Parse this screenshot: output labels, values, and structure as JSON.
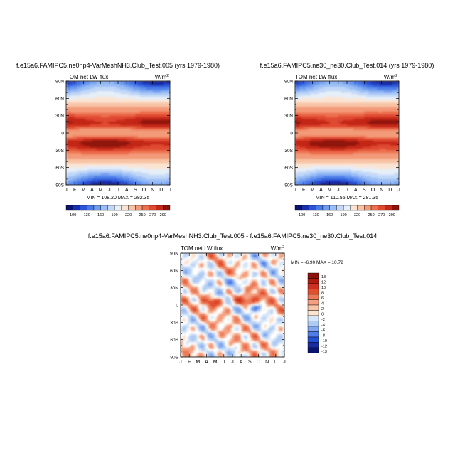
{
  "chart_data": [
    {
      "type": "heatmap",
      "title": "f.e15a6.FAMIPC5.ne0np4-VarMeshNH3.Club_Test.005 (yrs 1979-1980)",
      "left_label": "TOM net LW flux",
      "units_base": "W/m",
      "units_exp": "2",
      "stats": "MIN = 108.20 MAX = 282.35",
      "min": 108.2,
      "max": 282.35,
      "x_ticks": [
        "J",
        "F",
        "M",
        "A",
        "M",
        "J",
        "J",
        "A",
        "S",
        "O",
        "N",
        "D",
        "J"
      ],
      "y_ticks": [
        "90N",
        "60N",
        "30N",
        "0",
        "30S",
        "60S",
        "90S"
      ],
      "y_values": [
        90,
        60,
        30,
        0,
        -30,
        -60,
        -90
      ],
      "colorbar_labels": [
        "100",
        "130",
        "160",
        "190",
        "220",
        "250",
        "270",
        "290"
      ],
      "colorbar_levels": [
        100,
        115,
        130,
        145,
        160,
        175,
        190,
        205,
        220,
        235,
        250,
        260,
        270,
        280,
        290
      ]
    },
    {
      "type": "heatmap",
      "title": "f.e15a6.FAMIPC5.ne30_ne30.Club_Test.014 (yrs 1979-1980)",
      "left_label": "TOM net LW flux",
      "units_base": "W/m",
      "units_exp": "2",
      "stats": "MIN = 110.55 MAX = 281.35",
      "min": 110.55,
      "max": 281.35,
      "x_ticks": [
        "J",
        "F",
        "M",
        "A",
        "M",
        "J",
        "J",
        "A",
        "S",
        "O",
        "N",
        "D",
        "J"
      ],
      "y_ticks": [
        "90N",
        "60N",
        "30N",
        "0",
        "30S",
        "60S",
        "90S"
      ],
      "y_values": [
        90,
        60,
        30,
        0,
        -30,
        -60,
        -90
      ],
      "colorbar_labels": [
        "100",
        "130",
        "160",
        "190",
        "220",
        "250",
        "270",
        "290"
      ],
      "colorbar_levels": [
        100,
        115,
        130,
        145,
        160,
        175,
        190,
        205,
        220,
        235,
        250,
        260,
        270,
        280,
        290
      ]
    },
    {
      "type": "heatmap",
      "title": "f.e15a6.FAMIPC5.ne0np4-VarMeshNH3.Club_Test.005 - f.e15a6.FAMIPC5.ne30_ne30.Club_Test.014",
      "left_label": "TOM net LW flux",
      "units_base": "W/m",
      "units_exp": "2",
      "stats": "MIN = -6.90 MAX = 10.72",
      "min": -6.9,
      "max": 10.72,
      "x_ticks": [
        "J",
        "F",
        "M",
        "A",
        "M",
        "J",
        "J",
        "A",
        "S",
        "O",
        "N",
        "D",
        "J"
      ],
      "y_ticks": [
        "90N",
        "60N",
        "30N",
        "0",
        "30S",
        "60S",
        "90S"
      ],
      "y_values": [
        90,
        60,
        30,
        0,
        -30,
        -60,
        -90
      ],
      "colorbar_labels": [
        "13",
        "12",
        "10",
        "8",
        "6",
        "4",
        "2",
        "0",
        "-2",
        "-4",
        "-6",
        "-8",
        "-10",
        "-12",
        "-13"
      ]
    }
  ],
  "colors": {
    "abs_scale": [
      "#0a1470",
      "#1a2fb0",
      "#2a55d8",
      "#4a7ae8",
      "#6f9cf0",
      "#99bdf5",
      "#c2d8f8",
      "#e6eef8",
      "#fbe3d2",
      "#f8c3a5",
      "#f39a78",
      "#ec6f4e",
      "#e04a30",
      "#c42818",
      "#8e120c"
    ],
    "diff_scale": [
      "#8e120c",
      "#b01c10",
      "#cc3020",
      "#e0502f",
      "#ec7a58",
      "#f4a080",
      "#f8c4a8",
      "#fbe3d2",
      "#ffffff",
      "#d6e6f8",
      "#b0cbf3",
      "#7fa6ee",
      "#4f7ee8",
      "#2450d4",
      "#1a2aa0",
      "#0a1470"
    ]
  }
}
